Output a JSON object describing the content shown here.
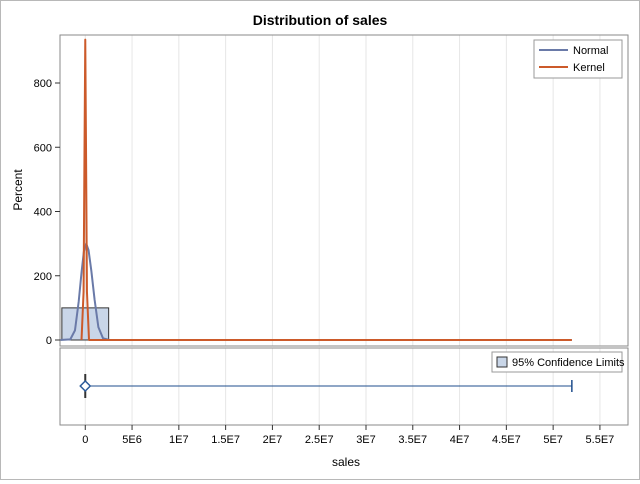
{
  "chart_data": {
    "type": "histogram",
    "title": "Distribution of sales",
    "xlabel": "sales",
    "ylabel": "Percent",
    "xlim": [
      -2700000,
      58000000
    ],
    "ylim": [
      0,
      950
    ],
    "x_ticks": [
      0,
      5000000,
      10000000,
      15000000,
      20000000,
      25000000,
      30000000,
      35000000,
      40000000,
      45000000,
      50000000,
      55000000
    ],
    "x_tick_labels": [
      "0",
      "5E6",
      "1E7",
      "1.5E7",
      "2E7",
      "2.5E7",
      "3E7",
      "3.5E7",
      "4E7",
      "4.5E7",
      "5E7",
      "5.5E7"
    ],
    "y_ticks": [
      0,
      200,
      400,
      600,
      800
    ],
    "y_tick_labels": [
      "0",
      "200",
      "400",
      "600",
      "800"
    ],
    "grid": "vertical",
    "legend_position": "top-right",
    "histogram_bins": [
      {
        "x0": -2500000,
        "x1": 2500000,
        "percent": 100
      }
    ],
    "series": [
      {
        "name": "Normal",
        "color": "#6a7aa8",
        "kind": "density",
        "points": [
          [
            -2700000,
            0
          ],
          [
            -1600000,
            2
          ],
          [
            -1100000,
            30
          ],
          [
            -700000,
            120
          ],
          [
            -400000,
            210
          ],
          [
            -150000,
            275
          ],
          [
            100000,
            300
          ],
          [
            350000,
            280
          ],
          [
            650000,
            215
          ],
          [
            1000000,
            125
          ],
          [
            1400000,
            40
          ],
          [
            1900000,
            5
          ],
          [
            2600000,
            0
          ],
          [
            52000000,
            0
          ]
        ]
      },
      {
        "name": "Kernel",
        "color": "#cc5a2a",
        "kind": "density",
        "points": [
          [
            -400000,
            0
          ],
          [
            -180000,
            150
          ],
          [
            -80000,
            600
          ],
          [
            0,
            935
          ],
          [
            80000,
            600
          ],
          [
            180000,
            150
          ],
          [
            400000,
            0
          ],
          [
            52000000,
            0
          ]
        ]
      }
    ],
    "confidence_panel": {
      "legend_label": "95% Confidence Limits",
      "legend_position": "top-right",
      "marker": "diamond",
      "point": 0,
      "lower": 0,
      "upper": 52000000,
      "color": "#1f4e8c",
      "marker_color": "#2a5a9a"
    }
  },
  "colors": {
    "histogram_fill": "#c9d6e8",
    "histogram_stroke": "#333333",
    "grid": "#e6e6e6",
    "frame": "#8a8a8a"
  }
}
